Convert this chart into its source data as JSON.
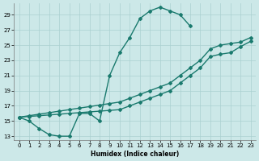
{
  "xlabel": "Humidex (Indice chaleur)",
  "bg_color": "#cce8e8",
  "line_color": "#1a7a6e",
  "marker": "D",
  "markersize": 2.0,
  "linewidth": 1.0,
  "xlim": [
    -0.5,
    23.5
  ],
  "ylim": [
    12.5,
    30.5
  ],
  "xticks": [
    0,
    1,
    2,
    3,
    4,
    5,
    6,
    7,
    8,
    9,
    10,
    11,
    12,
    13,
    14,
    15,
    16,
    17,
    18,
    19,
    20,
    21,
    22,
    23
  ],
  "yticks": [
    13,
    15,
    17,
    19,
    21,
    23,
    25,
    27,
    29
  ],
  "grid_color": "#aad0d0",
  "line1_x": [
    0,
    1,
    2,
    3,
    4,
    5,
    6,
    7,
    8,
    9,
    10,
    11,
    12,
    13,
    14,
    15,
    16,
    17
  ],
  "line1_y": [
    15.5,
    15.0,
    14.0,
    13.2,
    13.0,
    13.0,
    16.0,
    16.0,
    15.0,
    21.0,
    24.0,
    26.0,
    28.5,
    29.5,
    30.0,
    29.5,
    29.0,
    27.5
  ],
  "line2_x": [
    0,
    1,
    2,
    3,
    4,
    5,
    6,
    7,
    8,
    9,
    10,
    11,
    12,
    13,
    14,
    15,
    16,
    17,
    18,
    19,
    20,
    21,
    22,
    23
  ],
  "line2_y": [
    15.5,
    15.7,
    15.9,
    16.1,
    16.3,
    16.5,
    16.7,
    16.9,
    17.1,
    17.3,
    17.5,
    18.0,
    18.5,
    19.0,
    19.5,
    20.0,
    21.0,
    22.0,
    23.0,
    24.5,
    25.0,
    25.2,
    25.4,
    26.0
  ],
  "line3_x": [
    0,
    1,
    2,
    3,
    4,
    5,
    6,
    7,
    8,
    9,
    10,
    11,
    12,
    13,
    14,
    15,
    16,
    17,
    18,
    19,
    20,
    21,
    22,
    23
  ],
  "line3_y": [
    15.5,
    15.6,
    15.7,
    15.8,
    15.9,
    16.0,
    16.1,
    16.2,
    16.3,
    16.4,
    16.5,
    17.0,
    17.5,
    18.0,
    18.5,
    19.0,
    20.0,
    21.0,
    22.0,
    23.5,
    23.8,
    24.0,
    24.8,
    25.5
  ]
}
